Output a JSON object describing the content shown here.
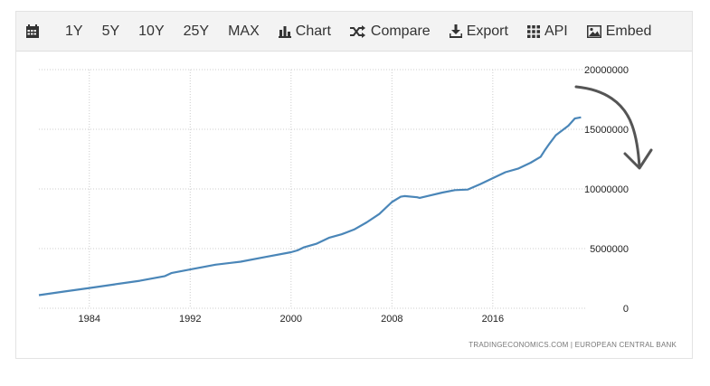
{
  "toolbar": {
    "calendar_icon": "calendar-icon",
    "ranges": [
      "1Y",
      "5Y",
      "10Y",
      "25Y",
      "MAX"
    ],
    "chart_label": "Chart",
    "compare_label": "Compare",
    "export_label": "Export",
    "api_label": "API",
    "embed_label": "Embed"
  },
  "credit": "TRADINGECONOMICS.COM  |  EUROPEAN CENTRAL BANK",
  "colors": {
    "line": "#4a86b8",
    "grid": "#cccccc",
    "annotation": "#555555"
  },
  "chart_data": {
    "type": "line",
    "title": "",
    "xlabel": "",
    "ylabel": "",
    "xlim": [
      1980.0,
      2023.4
    ],
    "ylim": [
      0,
      20000000
    ],
    "x_ticks": [
      1984,
      1992,
      2000,
      2008,
      2016
    ],
    "y_ticks": [
      0,
      5000000,
      10000000,
      15000000,
      20000000
    ],
    "y_tick_labels": [
      "0",
      "5000000",
      "10000000",
      "15000000",
      "20000000"
    ],
    "y_axis_side": "right",
    "grid": true,
    "series": [
      {
        "values_x": [
          1980.0,
          1982,
          1984,
          1986,
          1988,
          1990,
          1990.5,
          1992,
          1994,
          1996,
          1998,
          2000,
          2000.5,
          2001,
          2002,
          2003,
          2004,
          2005,
          2006,
          2007,
          2008,
          2008.7,
          2009,
          2010,
          2010.2,
          2011,
          2012,
          2013,
          2014,
          2015,
          2016,
          2017,
          2018,
          2019,
          2019.8,
          2020.1,
          2020.5,
          2021,
          2022,
          2022.5,
          2023.0
        ],
        "values_y": [
          1100000,
          1400000,
          1700000,
          2000000,
          2300000,
          2700000,
          2950000,
          3250000,
          3650000,
          3900000,
          4300000,
          4700000,
          4850000,
          5100000,
          5400000,
          5900000,
          6200000,
          6600000,
          7200000,
          7900000,
          8900000,
          9350000,
          9400000,
          9300000,
          9250000,
          9450000,
          9700000,
          9900000,
          9950000,
          10400000,
          10900000,
          11400000,
          11700000,
          12200000,
          12700000,
          13200000,
          13800000,
          14500000,
          15300000,
          15900000,
          16000000
        ]
      }
    ],
    "annotation": "hand-drawn arrow curving down to the right"
  }
}
